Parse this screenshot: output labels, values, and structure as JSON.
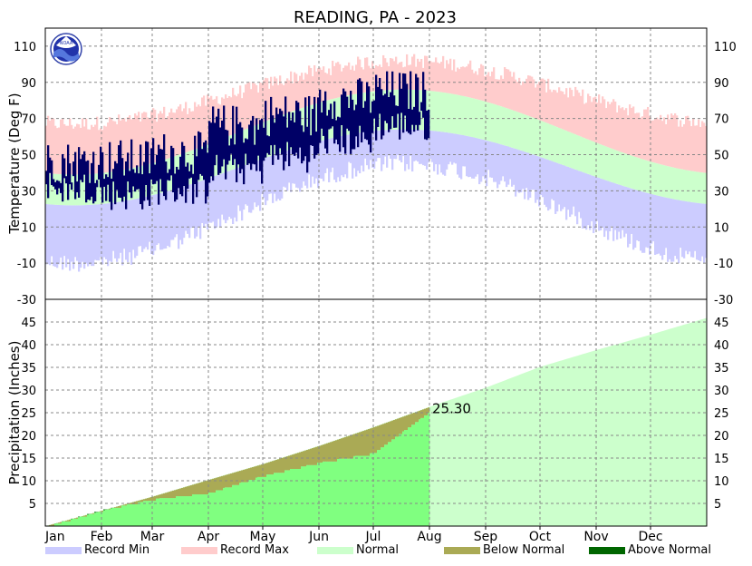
{
  "chart_data": [
    {
      "type": "bar",
      "title": "READING, PA - 2023",
      "ylabel": "Temperature (Deg F)",
      "ylim": [
        -30,
        120
      ],
      "yticks": [
        -30,
        -10,
        10,
        30,
        50,
        70,
        90,
        110
      ],
      "grid": true,
      "months": [
        "Jan",
        "Feb",
        "Mar",
        "Apr",
        "May",
        "Jun",
        "Jul",
        "Aug",
        "Sep",
        "Oct",
        "Nov",
        "Dec"
      ],
      "normal_band": {
        "low_jan": 22,
        "low_jul": 64,
        "high_jan": 39,
        "high_jul": 86
      },
      "record_band": {
        "min_jan": -5,
        "min_jul": 50,
        "max_jan": 66,
        "max_jul": 101
      },
      "observed_daily": {
        "through": "Jul 31",
        "monthly_mean_high": [
          46,
          47,
          51,
          66,
          72,
          81,
          85
        ],
        "monthly_mean_low": [
          32,
          28,
          31,
          42,
          49,
          58,
          66
        ]
      },
      "series": [
        {
          "name": "Record Min",
          "color": "#ccccff"
        },
        {
          "name": "Record Max",
          "color": "#ffcccc"
        },
        {
          "name": "Normal",
          "color": "#ccffcc"
        }
      ]
    },
    {
      "type": "area",
      "ylabel": "Precipitation (Inches)",
      "ylim": [
        0,
        50
      ],
      "yticks": [
        5,
        10,
        15,
        20,
        25,
        30,
        35,
        40,
        45
      ],
      "grid": true,
      "normal_cumulative_month_end": [
        3.4,
        6.5,
        10.2,
        13.7,
        17.7,
        21.8,
        26.3,
        30.5,
        35.1,
        38.8,
        42.2,
        45.9
      ],
      "observed_cumulative_month_end": [
        3.6,
        6.0,
        7.4,
        11.2,
        14.1,
        16.2,
        25.3
      ],
      "observed_total": 25.3,
      "observed_total_label": "25.30",
      "series": [
        {
          "name": "Below Normal",
          "color": "#aaaa55"
        },
        {
          "name": "Above Normal",
          "color": "#006600"
        }
      ]
    }
  ],
  "legend": [
    {
      "label": "Record Min",
      "color": "#ccccff"
    },
    {
      "label": "Record Max",
      "color": "#ffcccc"
    },
    {
      "label": "Normal",
      "color": "#ccffcc"
    },
    {
      "label": "Below Normal",
      "color": "#aaaa55"
    },
    {
      "label": "Above Normal",
      "color": "#006600"
    }
  ],
  "logo": {
    "text": "NOAA",
    "icon": "noaa-logo-icon"
  }
}
